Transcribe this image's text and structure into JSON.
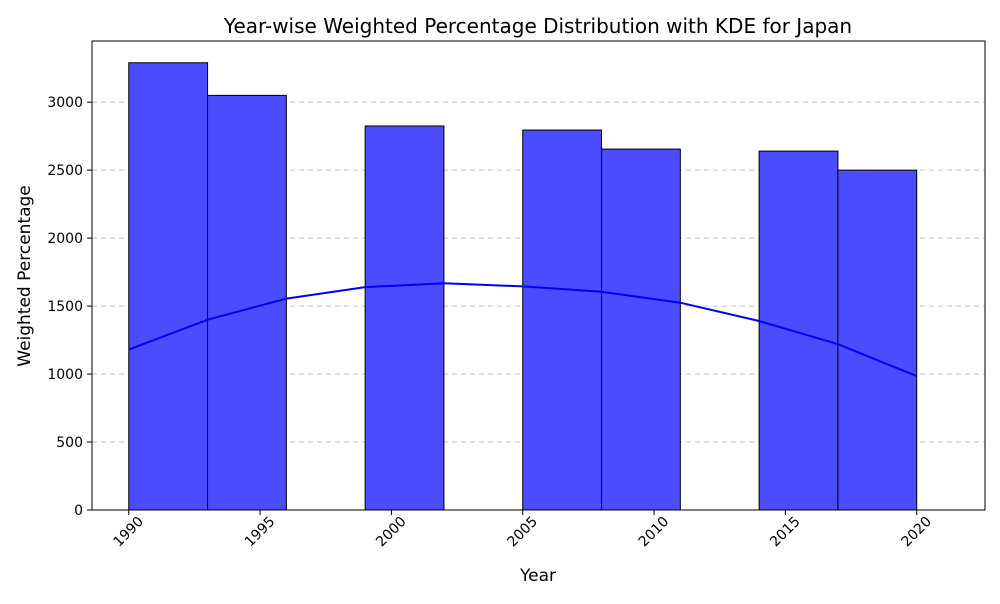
{
  "chart_data": {
    "type": "bar",
    "title": "Year-wise Weighted Percentage Distribution with KDE for Japan",
    "xlabel": "Year",
    "ylabel": "Weighted Percentage",
    "xlim": [
      1988.6,
      2022.6
    ],
    "ylim": [
      0,
      3450
    ],
    "x_ticks": [
      1990,
      1995,
      2000,
      2005,
      2010,
      2015,
      2020
    ],
    "y_ticks": [
      0,
      500,
      1000,
      1500,
      2000,
      2500,
      3000
    ],
    "grid": "y-dashed",
    "bins": [
      {
        "start": 1990,
        "end": 1993,
        "value": 3290
      },
      {
        "start": 1993,
        "end": 1996,
        "value": 3050
      },
      {
        "start": 1996,
        "end": 1999,
        "value": 0
      },
      {
        "start": 1999,
        "end": 2002,
        "value": 2825
      },
      {
        "start": 2002,
        "end": 2005,
        "value": 0
      },
      {
        "start": 2005,
        "end": 2008,
        "value": 2795
      },
      {
        "start": 2008,
        "end": 2011,
        "value": 2655
      },
      {
        "start": 2011,
        "end": 2014,
        "value": 0
      },
      {
        "start": 2014,
        "end": 2017,
        "value": 2640
      },
      {
        "start": 2017,
        "end": 2020,
        "value": 2500
      }
    ],
    "kde": {
      "x": [
        1990,
        1993,
        1996,
        1999,
        2002,
        2005,
        2008,
        2011,
        2014,
        2017,
        2020
      ],
      "y": [
        1180,
        1400,
        1555,
        1640,
        1668,
        1645,
        1605,
        1525,
        1390,
        1220,
        985
      ]
    },
    "colors": {
      "bar_fill": "#4b4bff",
      "bar_edge": "#000000",
      "kde_line": "#0000ee",
      "grid": "#c4c4c4"
    }
  }
}
